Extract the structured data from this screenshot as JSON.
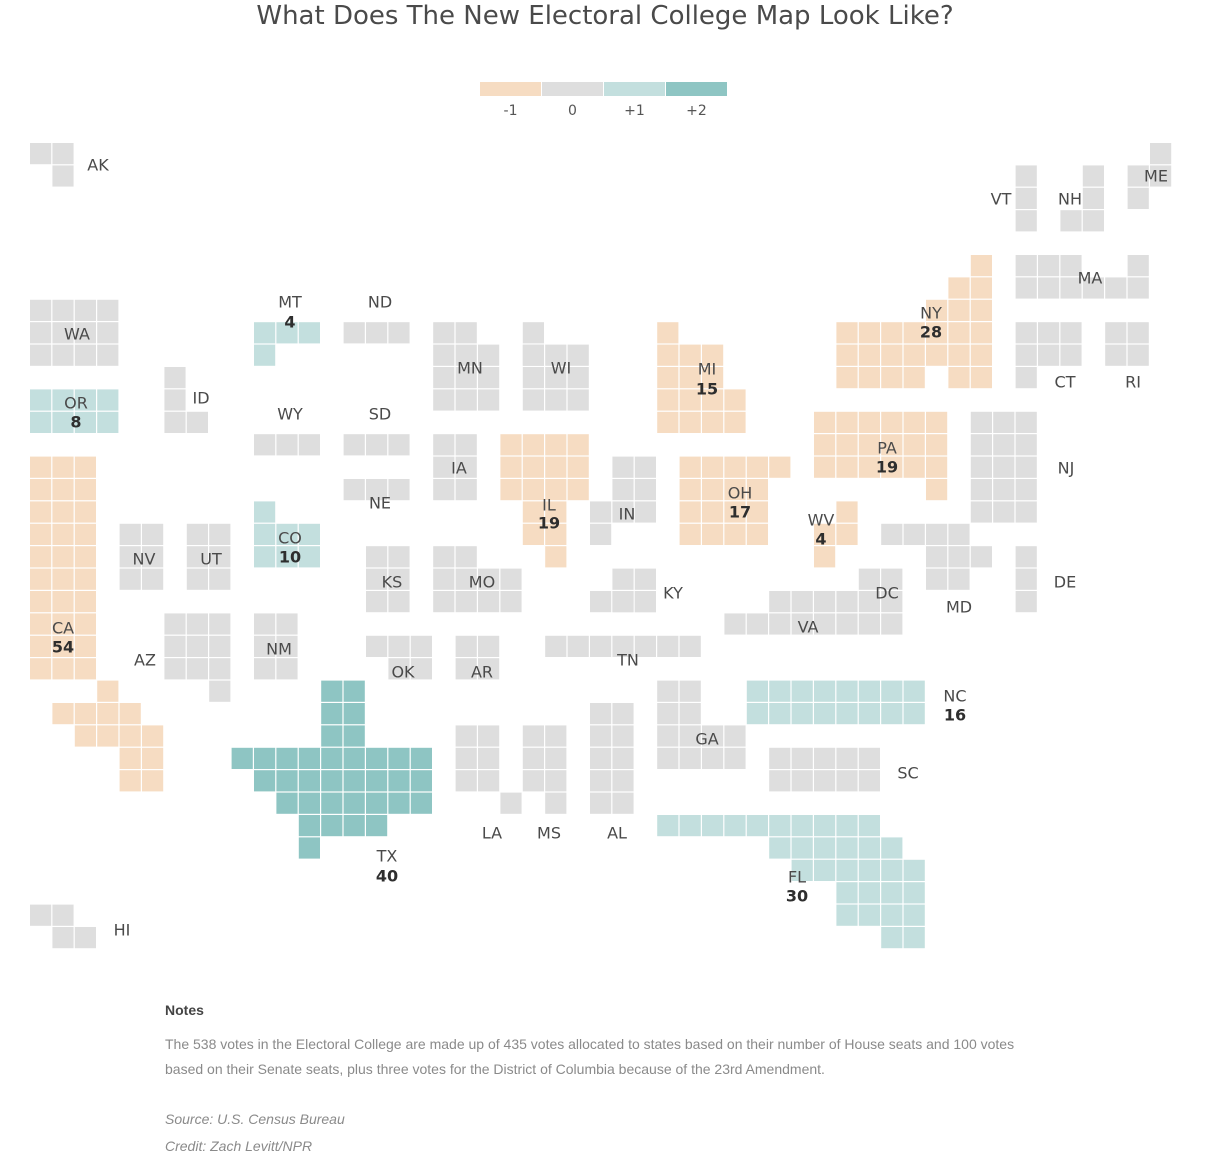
{
  "title": "What Does The New Electoral College Map Look Like?",
  "legend": [
    {
      "label": "-1",
      "value": -1,
      "color": "#f6dcc2"
    },
    {
      "label": "0",
      "value": 0,
      "color": "#dedede"
    },
    {
      "label": "+1",
      "value": 1,
      "color": "#c3dfde"
    },
    {
      "label": "+2",
      "value": 2,
      "color": "#8ec5c3"
    }
  ],
  "states": [
    {
      "abbr": "AK",
      "votes": 3,
      "change": 0,
      "show_votes": false
    },
    {
      "abbr": "VT",
      "votes": 3,
      "change": 0,
      "show_votes": false
    },
    {
      "abbr": "NH",
      "votes": 4,
      "change": 0,
      "show_votes": false
    },
    {
      "abbr": "ME",
      "votes": 4,
      "change": 0,
      "show_votes": false
    },
    {
      "abbr": "MA",
      "votes": 11,
      "change": 0,
      "show_votes": false
    },
    {
      "abbr": "WA",
      "votes": 12,
      "change": 0,
      "show_votes": false
    },
    {
      "abbr": "MT",
      "votes": 4,
      "change": 1,
      "show_votes": true
    },
    {
      "abbr": "ND",
      "votes": 3,
      "change": 0,
      "show_votes": false
    },
    {
      "abbr": "MN",
      "votes": 10,
      "change": 0,
      "show_votes": false
    },
    {
      "abbr": "WI",
      "votes": 10,
      "change": 0,
      "show_votes": false
    },
    {
      "abbr": "MI",
      "votes": 15,
      "change": -1,
      "show_votes": true
    },
    {
      "abbr": "NY",
      "votes": 28,
      "change": -1,
      "show_votes": true
    },
    {
      "abbr": "CT",
      "votes": 7,
      "change": 0,
      "show_votes": false
    },
    {
      "abbr": "RI",
      "votes": 4,
      "change": 0,
      "show_votes": false
    },
    {
      "abbr": "OR",
      "votes": 8,
      "change": 1,
      "show_votes": true
    },
    {
      "abbr": "ID",
      "votes": 4,
      "change": 0,
      "show_votes": false
    },
    {
      "abbr": "WY",
      "votes": 3,
      "change": 0,
      "show_votes": false
    },
    {
      "abbr": "SD",
      "votes": 3,
      "change": 0,
      "show_votes": false
    },
    {
      "abbr": "IA",
      "votes": 6,
      "change": 0,
      "show_votes": false
    },
    {
      "abbr": "IL",
      "votes": 19,
      "change": -1,
      "show_votes": true
    },
    {
      "abbr": "OH",
      "votes": 17,
      "change": -1,
      "show_votes": true
    },
    {
      "abbr": "PA",
      "votes": 19,
      "change": -1,
      "show_votes": true
    },
    {
      "abbr": "NJ",
      "votes": 14,
      "change": 0,
      "show_votes": false
    },
    {
      "abbr": "CA",
      "votes": 54,
      "change": -1,
      "show_votes": true
    },
    {
      "abbr": "NV",
      "votes": 6,
      "change": 0,
      "show_votes": false
    },
    {
      "abbr": "UT",
      "votes": 6,
      "change": 0,
      "show_votes": false
    },
    {
      "abbr": "CO",
      "votes": 10,
      "change": 1,
      "show_votes": true
    },
    {
      "abbr": "NE",
      "votes": 5,
      "change": 0,
      "show_votes": false
    },
    {
      "abbr": "IN",
      "votes": 11,
      "change": 0,
      "show_votes": false
    },
    {
      "abbr": "WV",
      "votes": 4,
      "change": -1,
      "show_votes": true
    },
    {
      "abbr": "KS",
      "votes": 6,
      "change": 0,
      "show_votes": false
    },
    {
      "abbr": "MO",
      "votes": 10,
      "change": 0,
      "show_votes": false
    },
    {
      "abbr": "KY",
      "votes": 8,
      "change": 0,
      "show_votes": false
    },
    {
      "abbr": "DC",
      "votes": 3,
      "change": 0,
      "show_votes": false
    },
    {
      "abbr": "MD",
      "votes": 10,
      "change": 0,
      "show_votes": false
    },
    {
      "abbr": "DE",
      "votes": 3,
      "change": 0,
      "show_votes": false
    },
    {
      "abbr": "VA",
      "votes": 13,
      "change": 0,
      "show_votes": false
    },
    {
      "abbr": "AZ",
      "votes": 11,
      "change": 0,
      "show_votes": false
    },
    {
      "abbr": "NM",
      "votes": 5,
      "change": 0,
      "show_votes": false
    },
    {
      "abbr": "OK",
      "votes": 7,
      "change": 0,
      "show_votes": false
    },
    {
      "abbr": "AR",
      "votes": 6,
      "change": 0,
      "show_votes": false
    },
    {
      "abbr": "TN",
      "votes": 11,
      "change": 0,
      "show_votes": false
    },
    {
      "abbr": "NC",
      "votes": 16,
      "change": 1,
      "show_votes": true
    },
    {
      "abbr": "GA",
      "votes": 16,
      "change": 0,
      "show_votes": false
    },
    {
      "abbr": "SC",
      "votes": 9,
      "change": 0,
      "show_votes": false
    },
    {
      "abbr": "TX",
      "votes": 40,
      "change": 2,
      "show_votes": true
    },
    {
      "abbr": "LA",
      "votes": 8,
      "change": 0,
      "show_votes": false
    },
    {
      "abbr": "MS",
      "votes": 6,
      "change": 0,
      "show_votes": false
    },
    {
      "abbr": "AL",
      "votes": 9,
      "change": 0,
      "show_votes": false
    },
    {
      "abbr": "FL",
      "votes": 30,
      "change": 1,
      "show_votes": true
    },
    {
      "abbr": "HI",
      "votes": 4,
      "change": 0,
      "show_votes": false
    }
  ],
  "notes": {
    "heading": "Notes",
    "body": "The 538 votes in the Electoral College are made up of 435 votes allocated to states based on their number of House seats and 100 votes based on their Senate seats, plus three votes for the District of Columbia because of the 23rd Amendment."
  },
  "source": "Source: U.S. Census Bureau",
  "credit": "Credit: Zach Levitt/NPR"
}
